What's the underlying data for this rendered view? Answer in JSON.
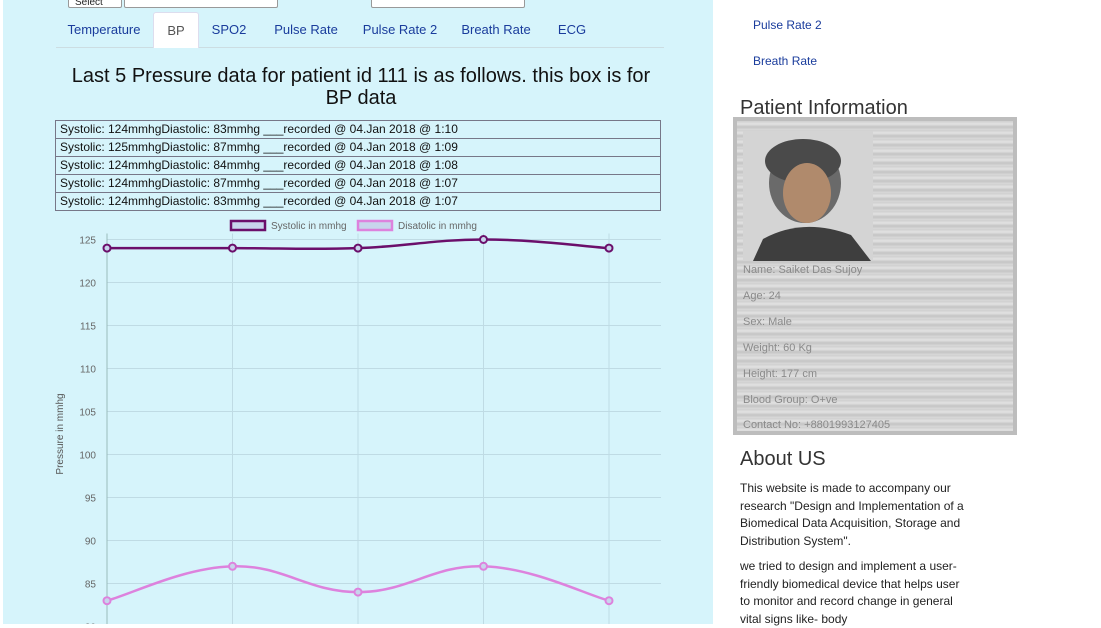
{
  "tabs": [
    "Temperature",
    "BP",
    "SPO2",
    "Pulse Rate",
    "Pulse Rate 2",
    "Breath Rate",
    "ECG"
  ],
  "top_select_label": "Select",
  "heading": "Last 5 Pressure data for patient id 111 is as follows. this box is for BP data",
  "bp_rows": [
    "Systolic: 124mmhgDiastolic: 83mmhg ___recorded @ 04.Jan 2018 @ 1:10",
    "Systolic: 125mmhgDiastolic: 87mmhg ___recorded @ 04.Jan 2018 @ 1:09",
    "Systolic: 124mmhgDiastolic: 84mmhg ___recorded @ 04.Jan 2018 @ 1:08",
    "Systolic: 124mmhgDiastolic: 87mmhg ___recorded @ 04.Jan 2018 @ 1:07",
    "Systolic: 124mmhgDiastolic: 83mmhg ___recorded @ 04.Jan 2018 @ 1:07"
  ],
  "chart_data": {
    "type": "line",
    "ylabel": "Pressure in mmhg",
    "xlabel": "",
    "yticks": [
      125,
      120,
      115,
      110,
      105,
      100,
      95,
      90,
      85
    ],
    "ylim": [
      80,
      125
    ],
    "grid": true,
    "legend_position": "top-center",
    "series": [
      {
        "name": "Systolic in mmhg",
        "color": "#6b0f6b",
        "fill": "#c8d4ec",
        "values": [
          124,
          124,
          124,
          125,
          124
        ]
      },
      {
        "name": "Disatolic in mmhg",
        "color": "#dd82dd",
        "fill": "#c8d4ec",
        "values": [
          83,
          87,
          84,
          87,
          83
        ]
      }
    ]
  },
  "sidebar": {
    "links": [
      "Pulse Rate 2",
      "Breath Rate"
    ],
    "patient_title": "Patient Information",
    "patient_lines": [
      "Name: Saiket Das Sujoy",
      "Age: 24",
      "Sex: Male",
      "Weight: 60 Kg",
      "Height: 177 cm",
      "Blood Group: O+ve",
      "Contact No: +8801993127405"
    ],
    "about_title": "About US",
    "about_p1": "This website is made to accompany our research \"Design and Implementation of a Biomedical Data Acquisition, Storage and Distribution System\".",
    "about_p2": "we tried to design and implement a user-friendly biomedical device that helps user to monitor and record change in general vital signs like- body"
  }
}
